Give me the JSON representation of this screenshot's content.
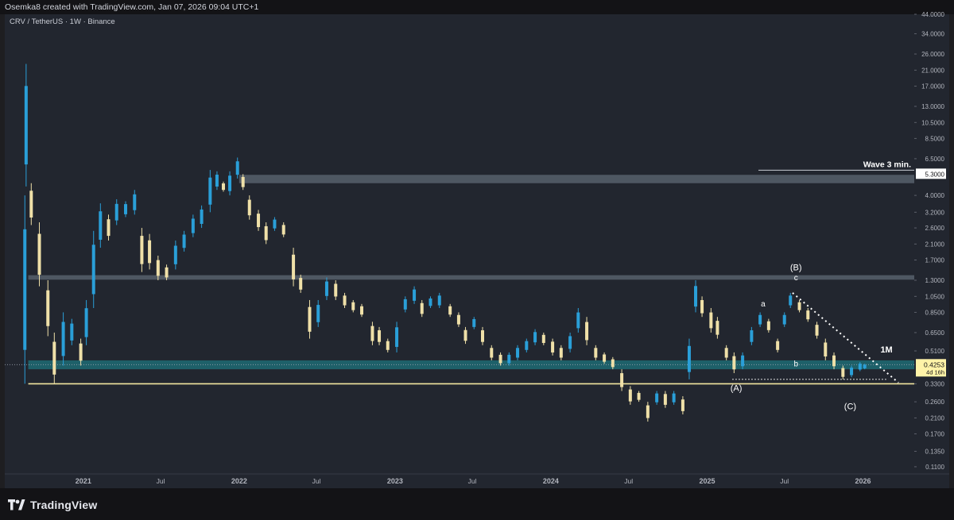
{
  "header": {
    "caption": "Osemka8 created with TradingView.com, Jan 07, 2026 09:04 UTC+1"
  },
  "chart_title": "CRV / TetherUS · 1W · Binance",
  "branding": {
    "name": "TradingView"
  },
  "colors": {
    "background": "#22262f",
    "bull_candle": "#2a9fd8",
    "bear_candle": "#efe0a8",
    "band_gray": "#56606b",
    "band_teal": "#1d6b73",
    "support_line": "#f4e6a0",
    "price_label_bg": "#fff3a8",
    "annotation": "#ffffff"
  },
  "chart_data": {
    "type": "candlestick",
    "scale": "log",
    "ylim": [
      0.1,
      44.0
    ],
    "xlim": [
      "2020-07-01",
      "2026-05-01"
    ],
    "y_ticks": [
      "44.0000",
      "34.0000",
      "26.0000",
      "21.0000",
      "17.0000",
      "13.0000",
      "10.5000",
      "8.5000",
      "6.5000",
      "5.3000",
      "4.0000",
      "3.2000",
      "2.6000",
      "2.1000",
      "1.7000",
      "1.3000",
      "1.0500",
      "0.8500",
      "0.6500",
      "0.5100",
      "0.4253",
      "0.3300",
      "0.2600",
      "0.2100",
      "0.1700",
      "0.1350",
      "0.1100"
    ],
    "x_ticks": [
      {
        "date": "2021-01-01",
        "label": "2021",
        "bold": true
      },
      {
        "date": "2021-07-01",
        "label": "Jul",
        "bold": false
      },
      {
        "date": "2022-01-01",
        "label": "2022",
        "bold": true
      },
      {
        "date": "2022-07-01",
        "label": "Jul",
        "bold": false
      },
      {
        "date": "2023-01-01",
        "label": "2023",
        "bold": true
      },
      {
        "date": "2023-07-01",
        "label": "Jul",
        "bold": false
      },
      {
        "date": "2024-01-01",
        "label": "2024",
        "bold": true
      },
      {
        "date": "2024-07-01",
        "label": "Jul",
        "bold": false
      },
      {
        "date": "2025-01-01",
        "label": "2025",
        "bold": true
      },
      {
        "date": "2025-07-01",
        "label": "Jul",
        "bold": false
      },
      {
        "date": "2026-01-01",
        "label": "2026",
        "bold": true
      }
    ],
    "current_price": {
      "value": "0.4253",
      "countdown": "4d 16h"
    },
    "target_label": {
      "value": "5.3000",
      "text": "Wave 3 min."
    },
    "zones": [
      {
        "name": "upper-resistance-zone",
        "from": 4.7,
        "to": 5.25,
        "start": "2022-01-01",
        "color": "#56606b"
      },
      {
        "name": "mid-range-zone",
        "from": 1.31,
        "to": 1.39,
        "start": "2020-08-25",
        "color": "#56606b"
      },
      {
        "name": "support-zone-1m",
        "from": 0.4,
        "to": 0.45,
        "start": "2020-08-25",
        "color": "#1d6b73"
      }
    ],
    "lines": [
      {
        "name": "base-support-line",
        "value": 0.33,
        "start": "2020-08-25",
        "end": "2026-05-01",
        "style": "solid",
        "color": "#f4e6a0"
      },
      {
        "name": "wave-a-low-line",
        "value": 0.35,
        "start": "2025-03-01",
        "end": "2026-03-01",
        "style": "dotted",
        "color": "#ffffff"
      },
      {
        "name": "trendline-b-to-c",
        "p1": {
          "date": "2025-07-20",
          "value": 1.1
        },
        "p2": {
          "date": "2026-03-25",
          "value": 0.335
        },
        "style": "dotted",
        "color": "#ffffff"
      }
    ],
    "annotations": [
      {
        "text": "(B)",
        "date": "2025-07-28",
        "value": 1.48
      },
      {
        "text": "c",
        "date": "2025-07-28",
        "value": 1.3
      },
      {
        "text": "a",
        "date": "2025-05-12",
        "value": 0.92
      },
      {
        "text": "b",
        "date": "2025-07-28",
        "value": 0.415
      },
      {
        "text": "(A)",
        "date": "2025-03-10",
        "value": 0.3
      },
      {
        "text": "(C)",
        "date": "2025-12-02",
        "value": 0.235
      },
      {
        "text": "1M",
        "date": "2026-02-25",
        "value": 0.5
      }
    ],
    "series": [
      {
        "points": [
          [
            "2020-08-17",
            0.33,
            4.0
          ],
          [
            "2020-08-20",
            4.5,
            22.8
          ],
          [
            "2020-09-01",
            2.7,
            4.7
          ],
          [
            "2020-09-20",
            1.2,
            2.8
          ],
          [
            "2020-10-10",
            0.62,
            1.3
          ],
          [
            "2020-10-25",
            0.33,
            0.65
          ],
          [
            "2020-11-15",
            0.42,
            0.85
          ],
          [
            "2020-12-05",
            0.55,
            0.78
          ],
          [
            "2020-12-26",
            0.42,
            0.6
          ],
          [
            "2021-01-08",
            0.55,
            1.0
          ],
          [
            "2021-01-25",
            0.9,
            2.5
          ],
          [
            "2021-02-10",
            2.0,
            3.6
          ],
          [
            "2021-03-01",
            2.2,
            3.1
          ],
          [
            "2021-03-20",
            2.7,
            3.8
          ],
          [
            "2021-04-10",
            3.0,
            3.7
          ],
          [
            "2021-05-01",
            3.1,
            4.3
          ],
          [
            "2021-05-18",
            1.45,
            2.6
          ],
          [
            "2021-06-05",
            1.5,
            2.4
          ],
          [
            "2021-06-25",
            1.3,
            1.8
          ],
          [
            "2021-07-15",
            1.3,
            1.6
          ],
          [
            "2021-08-05",
            1.5,
            2.2
          ],
          [
            "2021-08-25",
            1.9,
            2.5
          ],
          [
            "2021-09-15",
            2.3,
            3.1
          ],
          [
            "2021-10-05",
            2.6,
            3.5
          ],
          [
            "2021-10-25",
            3.2,
            5.6
          ],
          [
            "2021-11-10",
            4.3,
            5.5
          ],
          [
            "2021-11-25",
            4.2,
            4.8
          ],
          [
            "2021-12-10",
            4.0,
            5.5
          ],
          [
            "2021-12-28",
            5.0,
            6.6
          ],
          [
            "2022-01-10",
            4.3,
            5.3
          ],
          [
            "2022-01-25",
            2.9,
            4.0
          ],
          [
            "2022-02-15",
            2.5,
            3.3
          ],
          [
            "2022-03-05",
            2.1,
            2.8
          ],
          [
            "2022-03-25",
            2.5,
            3.0
          ],
          [
            "2022-04-15",
            2.3,
            2.8
          ],
          [
            "2022-05-08",
            1.2,
            2.0
          ],
          [
            "2022-05-25",
            1.1,
            1.4
          ],
          [
            "2022-06-15",
            0.6,
            1.0
          ],
          [
            "2022-07-05",
            0.7,
            1.0
          ],
          [
            "2022-07-25",
            1.0,
            1.35
          ],
          [
            "2022-08-15",
            1.0,
            1.3
          ],
          [
            "2022-09-05",
            0.9,
            1.1
          ],
          [
            "2022-09-25",
            0.85,
            1.0
          ],
          [
            "2022-10-15",
            0.8,
            0.95
          ],
          [
            "2022-11-09",
            0.55,
            0.75
          ],
          [
            "2022-11-25",
            0.55,
            0.7
          ],
          [
            "2022-12-15",
            0.5,
            0.6
          ],
          [
            "2023-01-05",
            0.5,
            0.75
          ],
          [
            "2023-01-25",
            0.85,
            1.05
          ],
          [
            "2023-02-15",
            0.95,
            1.2
          ],
          [
            "2023-03-05",
            0.8,
            1.0
          ],
          [
            "2023-03-25",
            0.9,
            1.05
          ],
          [
            "2023-04-15",
            0.9,
            1.1
          ],
          [
            "2023-05-10",
            0.8,
            0.95
          ],
          [
            "2023-05-30",
            0.7,
            0.85
          ],
          [
            "2023-06-15",
            0.56,
            0.7
          ],
          [
            "2023-07-05",
            0.68,
            0.8
          ],
          [
            "2023-07-25",
            0.55,
            0.7
          ],
          [
            "2023-08-15",
            0.45,
            0.55
          ],
          [
            "2023-09-05",
            0.42,
            0.5
          ],
          [
            "2023-09-25",
            0.42,
            0.5
          ],
          [
            "2023-10-15",
            0.45,
            0.55
          ],
          [
            "2023-11-05",
            0.5,
            0.6
          ],
          [
            "2023-11-25",
            0.55,
            0.68
          ],
          [
            "2023-12-15",
            0.55,
            0.65
          ],
          [
            "2024-01-05",
            0.48,
            0.6
          ],
          [
            "2024-01-25",
            0.45,
            0.55
          ],
          [
            "2024-02-15",
            0.5,
            0.65
          ],
          [
            "2024-03-05",
            0.65,
            0.9
          ],
          [
            "2024-03-25",
            0.55,
            0.8
          ],
          [
            "2024-04-15",
            0.45,
            0.55
          ],
          [
            "2024-05-05",
            0.43,
            0.5
          ],
          [
            "2024-05-25",
            0.4,
            0.47
          ],
          [
            "2024-06-15",
            0.3,
            0.4
          ],
          [
            "2024-07-05",
            0.25,
            0.32
          ],
          [
            "2024-07-25",
            0.26,
            0.3
          ],
          [
            "2024-08-15",
            0.2,
            0.26
          ],
          [
            "2024-09-05",
            0.25,
            0.3
          ],
          [
            "2024-09-25",
            0.24,
            0.3
          ],
          [
            "2024-10-15",
            0.25,
            0.3
          ],
          [
            "2024-11-05",
            0.22,
            0.28
          ],
          [
            "2024-11-20",
            0.35,
            0.6
          ],
          [
            "2024-12-05",
            0.85,
            1.3
          ],
          [
            "2024-12-20",
            0.8,
            1.05
          ],
          [
            "2025-01-10",
            0.65,
            0.9
          ],
          [
            "2025-01-25",
            0.6,
            0.8
          ],
          [
            "2025-02-15",
            0.45,
            0.55
          ],
          [
            "2025-03-05",
            0.38,
            0.5
          ],
          [
            "2025-03-25",
            0.4,
            0.5
          ],
          [
            "2025-04-15",
            0.55,
            0.7
          ],
          [
            "2025-05-05",
            0.7,
            0.85
          ],
          [
            "2025-05-25",
            0.65,
            0.78
          ],
          [
            "2025-06-15",
            0.5,
            0.6
          ],
          [
            "2025-07-01",
            0.7,
            0.85
          ],
          [
            "2025-07-15",
            0.9,
            1.1
          ],
          [
            "2025-08-05",
            0.85,
            1.0
          ],
          [
            "2025-08-25",
            0.75,
            0.9
          ],
          [
            "2025-09-15",
            0.6,
            0.75
          ],
          [
            "2025-10-05",
            0.45,
            0.6
          ],
          [
            "2025-10-25",
            0.4,
            0.5
          ],
          [
            "2025-11-15",
            0.35,
            0.42
          ],
          [
            "2025-12-05",
            0.36,
            0.42
          ],
          [
            "2025-12-25",
            0.39,
            0.44
          ],
          [
            "2026-01-05",
            0.4,
            0.43
          ]
        ]
      }
    ]
  }
}
